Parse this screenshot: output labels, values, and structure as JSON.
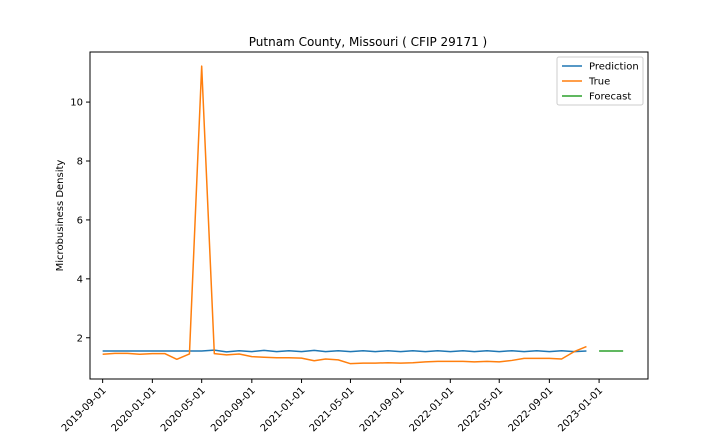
{
  "chart_data": {
    "type": "line",
    "title": "Putnam County, Missouri ( CFIP 29171 )",
    "xlabel": "",
    "ylabel": "Microbusiness Density",
    "x_ticks": [
      "2019-09-01",
      "2020-01-01",
      "2020-05-01",
      "2020-09-01",
      "2021-01-01",
      "2021-05-01",
      "2021-09-01",
      "2022-01-01",
      "2022-05-01",
      "2022-09-01",
      "2023-01-01"
    ],
    "y_ticks": [
      2,
      4,
      6,
      8,
      10
    ],
    "xlim": [
      "2019-08-01",
      "2023-05-01"
    ],
    "ylim": [
      0.6,
      11.7
    ],
    "grid": false,
    "legend_position": "top-right",
    "series": [
      {
        "name": "Prediction",
        "color": "#1f77b4",
        "x": [
          "2019-09-01",
          "2019-10-01",
          "2019-11-01",
          "2019-12-01",
          "2020-01-01",
          "2020-02-01",
          "2020-03-01",
          "2020-04-01",
          "2020-05-01",
          "2020-06-01",
          "2020-07-01",
          "2020-08-01",
          "2020-09-01",
          "2020-10-01",
          "2020-11-01",
          "2020-12-01",
          "2021-01-01",
          "2021-02-01",
          "2021-03-01",
          "2021-04-01",
          "2021-05-01",
          "2021-06-01",
          "2021-07-01",
          "2021-08-01",
          "2021-09-01",
          "2021-10-01",
          "2021-11-01",
          "2021-12-01",
          "2022-01-01",
          "2022-02-01",
          "2022-03-01",
          "2022-04-01",
          "2022-05-01",
          "2022-06-01",
          "2022-07-01",
          "2022-08-01",
          "2022-09-01",
          "2022-10-01",
          "2022-11-01",
          "2022-12-01"
        ],
        "y": [
          1.55,
          1.55,
          1.55,
          1.55,
          1.55,
          1.55,
          1.55,
          1.55,
          1.55,
          1.58,
          1.52,
          1.56,
          1.53,
          1.57,
          1.53,
          1.56,
          1.53,
          1.57,
          1.53,
          1.56,
          1.53,
          1.56,
          1.53,
          1.56,
          1.53,
          1.56,
          1.53,
          1.56,
          1.53,
          1.56,
          1.53,
          1.56,
          1.53,
          1.56,
          1.53,
          1.56,
          1.53,
          1.56,
          1.53,
          1.55
        ]
      },
      {
        "name": "True",
        "color": "#ff7f0e",
        "x": [
          "2019-09-01",
          "2019-10-01",
          "2019-11-01",
          "2019-12-01",
          "2020-01-01",
          "2020-02-01",
          "2020-03-01",
          "2020-04-01",
          "2020-05-01",
          "2020-06-01",
          "2020-07-01",
          "2020-08-01",
          "2020-09-01",
          "2020-10-01",
          "2020-11-01",
          "2020-12-01",
          "2021-01-01",
          "2021-02-01",
          "2021-03-01",
          "2021-04-01",
          "2021-05-01",
          "2021-06-01",
          "2021-07-01",
          "2021-08-01",
          "2021-09-01",
          "2021-10-01",
          "2021-11-01",
          "2021-12-01",
          "2022-01-01",
          "2022-02-01",
          "2022-03-01",
          "2022-04-01",
          "2022-05-01",
          "2022-06-01",
          "2022-07-01",
          "2022-08-01",
          "2022-09-01",
          "2022-10-01",
          "2022-11-01",
          "2022-12-01"
        ],
        "y": [
          1.44,
          1.47,
          1.47,
          1.44,
          1.46,
          1.46,
          1.27,
          1.45,
          11.22,
          1.46,
          1.42,
          1.45,
          1.36,
          1.34,
          1.32,
          1.32,
          1.31,
          1.22,
          1.28,
          1.25,
          1.12,
          1.14,
          1.14,
          1.15,
          1.14,
          1.15,
          1.18,
          1.2,
          1.2,
          1.2,
          1.18,
          1.2,
          1.18,
          1.23,
          1.3,
          1.3,
          1.3,
          1.28,
          1.53,
          1.7
        ]
      },
      {
        "name": "Forecast",
        "color": "#2ca02c",
        "x": [
          "2023-01-01",
          "2023-02-01",
          "2023-03-01"
        ],
        "y": [
          1.55,
          1.55,
          1.55
        ]
      }
    ]
  }
}
